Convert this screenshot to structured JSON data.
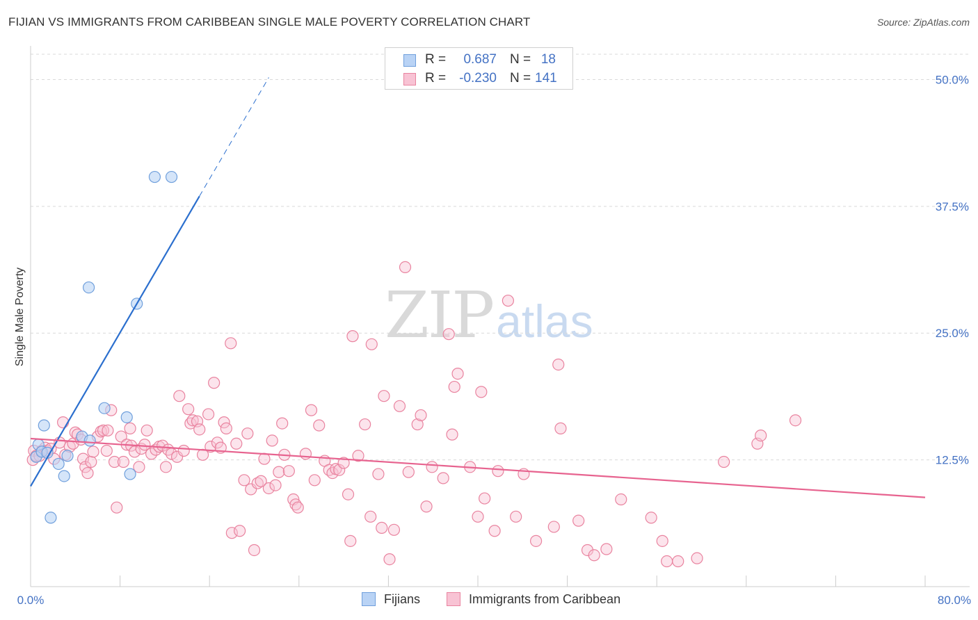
{
  "title": "FIJIAN VS IMMIGRANTS FROM CARIBBEAN SINGLE MALE POVERTY CORRELATION CHART",
  "source": "Source: ZipAtlas.com",
  "watermark": {
    "zip": "ZIP",
    "atlas": "atlas"
  },
  "legend": {
    "rows": [
      {
        "r_label": "R =",
        "r_value": "0.687",
        "n_label": "N =",
        "n_value": "18"
      },
      {
        "r_label": "R =",
        "r_value": "-0.230",
        "n_label": "N =",
        "n_value": "141"
      }
    ]
  },
  "bottom_legend": [
    "Fijians",
    "Immigrants from Caribbean"
  ],
  "colors": {
    "fijians_fill": "#b9d3f5",
    "fijians_stroke": "#6f9fdc",
    "fijians_line": "#2b6fce",
    "caribbean_fill": "#f8c3d4",
    "caribbean_stroke": "#e9839f",
    "caribbean_line": "#e7638f",
    "tick": "#4472c4",
    "grid": "#d9d9d9"
  },
  "chart_data": {
    "type": "scatter",
    "title": "FIJIAN VS IMMIGRANTS FROM CARIBBEAN SINGLE MALE POVERTY CORRELATION CHART",
    "xlabel": "",
    "ylabel": "Single Male Poverty",
    "xlim": [
      0,
      80
    ],
    "ylim": [
      0,
      52.5
    ],
    "x_tick_labels": [
      "0.0%",
      "80.0%"
    ],
    "y_ticks": [
      12.5,
      25.0,
      37.5,
      50.0
    ],
    "y_tick_labels": [
      "12.5%",
      "25.0%",
      "37.5%",
      "50.0%"
    ],
    "grid": true,
    "legend_position": "top-center",
    "series": [
      {
        "name": "Fijians",
        "R": 0.687,
        "N": 18,
        "points": [
          [
            0.5,
            12.8
          ],
          [
            0.7,
            14.0
          ],
          [
            1.0,
            13.3
          ],
          [
            1.2,
            15.9
          ],
          [
            1.5,
            13.2
          ],
          [
            1.8,
            6.8
          ],
          [
            2.5,
            12.1
          ],
          [
            3.0,
            10.9
          ],
          [
            3.3,
            12.9
          ],
          [
            4.6,
            14.8
          ],
          [
            5.2,
            29.5
          ],
          [
            5.3,
            14.4
          ],
          [
            6.6,
            17.6
          ],
          [
            8.6,
            16.7
          ],
          [
            8.9,
            11.1
          ],
          [
            9.5,
            27.9
          ],
          [
            11.1,
            40.4
          ],
          [
            12.6,
            40.4
          ]
        ],
        "trend": {
          "x0": 0,
          "y0": 9.9,
          "x1": 15.1,
          "y1": 38.5,
          "dash_to_x": 21.3,
          "dash_to_y": 50.2
        }
      },
      {
        "name": "Immigrants from Caribbean",
        "R": -0.23,
        "N": 141,
        "points": [
          [
            0.2,
            12.5
          ],
          [
            0.3,
            13.4
          ],
          [
            0.5,
            12.9
          ],
          [
            0.8,
            12.9
          ],
          [
            1.0,
            13.4
          ],
          [
            1.3,
            13.7
          ],
          [
            1.5,
            13.4
          ],
          [
            1.8,
            13.6
          ],
          [
            2.1,
            12.6
          ],
          [
            2.6,
            14.2
          ],
          [
            2.9,
            16.2
          ],
          [
            3.1,
            13.0
          ],
          [
            3.5,
            13.8
          ],
          [
            3.8,
            14.1
          ],
          [
            4.0,
            15.2
          ],
          [
            4.2,
            15.0
          ],
          [
            4.5,
            14.5
          ],
          [
            4.7,
            12.6
          ],
          [
            4.9,
            11.8
          ],
          [
            5.1,
            11.2
          ],
          [
            5.4,
            12.3
          ],
          [
            5.6,
            13.3
          ],
          [
            6.0,
            14.8
          ],
          [
            6.3,
            15.3
          ],
          [
            6.5,
            15.4
          ],
          [
            6.8,
            13.4
          ],
          [
            6.9,
            15.4
          ],
          [
            7.2,
            17.4
          ],
          [
            7.5,
            12.3
          ],
          [
            7.7,
            7.8
          ],
          [
            8.1,
            14.8
          ],
          [
            8.3,
            12.3
          ],
          [
            8.6,
            14.0
          ],
          [
            8.9,
            15.6
          ],
          [
            9.0,
            13.9
          ],
          [
            9.3,
            13.3
          ],
          [
            9.7,
            11.8
          ],
          [
            9.9,
            13.6
          ],
          [
            10.2,
            14.0
          ],
          [
            10.4,
            15.4
          ],
          [
            10.8,
            13.1
          ],
          [
            11.2,
            13.5
          ],
          [
            11.5,
            13.8
          ],
          [
            11.8,
            13.9
          ],
          [
            12.1,
            11.8
          ],
          [
            12.3,
            13.5
          ],
          [
            12.6,
            13.1
          ],
          [
            13.1,
            12.8
          ],
          [
            13.3,
            18.8
          ],
          [
            13.7,
            13.4
          ],
          [
            14.1,
            17.5
          ],
          [
            14.3,
            16.1
          ],
          [
            14.5,
            16.4
          ],
          [
            14.9,
            16.3
          ],
          [
            15.1,
            15.5
          ],
          [
            15.4,
            13.0
          ],
          [
            15.9,
            17.0
          ],
          [
            16.1,
            13.8
          ],
          [
            16.4,
            20.1
          ],
          [
            16.7,
            14.2
          ],
          [
            17.0,
            13.7
          ],
          [
            17.3,
            16.2
          ],
          [
            17.5,
            15.6
          ],
          [
            17.9,
            24.0
          ],
          [
            18.0,
            5.3
          ],
          [
            18.4,
            14.1
          ],
          [
            18.7,
            5.5
          ],
          [
            19.1,
            10.5
          ],
          [
            19.4,
            15.1
          ],
          [
            19.7,
            9.6
          ],
          [
            20.0,
            3.6
          ],
          [
            20.3,
            10.2
          ],
          [
            20.6,
            10.4
          ],
          [
            20.9,
            12.6
          ],
          [
            21.3,
            9.7
          ],
          [
            21.6,
            14.4
          ],
          [
            21.9,
            10.0
          ],
          [
            22.2,
            11.3
          ],
          [
            22.5,
            16.1
          ],
          [
            22.7,
            13.0
          ],
          [
            23.1,
            11.4
          ],
          [
            23.5,
            8.6
          ],
          [
            23.7,
            8.1
          ],
          [
            23.9,
            7.8
          ],
          [
            24.6,
            13.1
          ],
          [
            25.1,
            17.4
          ],
          [
            25.4,
            10.5
          ],
          [
            25.8,
            15.9
          ],
          [
            26.3,
            12.4
          ],
          [
            26.7,
            11.5
          ],
          [
            27.0,
            11.2
          ],
          [
            27.3,
            11.6
          ],
          [
            27.6,
            11.5
          ],
          [
            28.0,
            12.2
          ],
          [
            28.4,
            9.1
          ],
          [
            28.6,
            4.5
          ],
          [
            28.8,
            24.7
          ],
          [
            29.3,
            12.9
          ],
          [
            29.9,
            16.0
          ],
          [
            30.4,
            6.9
          ],
          [
            30.5,
            23.9
          ],
          [
            31.1,
            11.1
          ],
          [
            31.4,
            5.8
          ],
          [
            31.6,
            18.8
          ],
          [
            32.1,
            2.7
          ],
          [
            32.5,
            5.6
          ],
          [
            33.0,
            17.8
          ],
          [
            33.5,
            31.5
          ],
          [
            33.8,
            11.3
          ],
          [
            34.6,
            16.0
          ],
          [
            34.9,
            16.9
          ],
          [
            35.4,
            7.9
          ],
          [
            35.9,
            11.8
          ],
          [
            36.9,
            10.7
          ],
          [
            37.4,
            24.9
          ],
          [
            37.7,
            15.0
          ],
          [
            37.9,
            19.7
          ],
          [
            38.2,
            21.0
          ],
          [
            39.3,
            11.8
          ],
          [
            40.0,
            6.9
          ],
          [
            40.3,
            19.2
          ],
          [
            40.6,
            8.7
          ],
          [
            41.5,
            5.5
          ],
          [
            41.8,
            11.4
          ],
          [
            42.7,
            28.2
          ],
          [
            43.4,
            6.9
          ],
          [
            44.1,
            11.1
          ],
          [
            45.2,
            4.5
          ],
          [
            46.8,
            5.9
          ],
          [
            47.2,
            21.9
          ],
          [
            47.4,
            15.6
          ],
          [
            49.0,
            6.5
          ],
          [
            49.8,
            3.6
          ],
          [
            50.4,
            3.1
          ],
          [
            51.5,
            3.7
          ],
          [
            52.8,
            8.6
          ],
          [
            55.5,
            6.8
          ],
          [
            56.5,
            4.5
          ],
          [
            56.9,
            2.5
          ],
          [
            57.9,
            2.5
          ],
          [
            59.6,
            2.8
          ],
          [
            62.0,
            12.3
          ],
          [
            65.0,
            14.1
          ],
          [
            65.3,
            14.9
          ],
          [
            68.4,
            16.4
          ]
        ],
        "trend": {
          "x0": 0,
          "y0": 14.6,
          "x1": 80,
          "y1": 8.8
        }
      }
    ]
  }
}
